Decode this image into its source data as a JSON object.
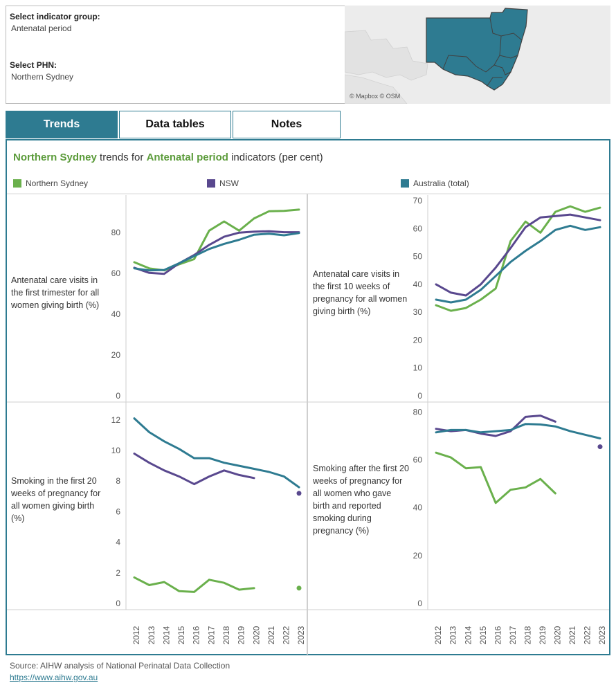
{
  "selectors": {
    "indicator_group_label": "Select indicator group:",
    "indicator_group_value": "Antenatal period",
    "phn_label": "Select PHN:",
    "phn_value": "Northern Sydney"
  },
  "map": {
    "credit": "© Mapbox © OSM"
  },
  "tabs": [
    {
      "label": "Trends",
      "active": true
    },
    {
      "label": "Data tables",
      "active": false
    },
    {
      "label": "Notes",
      "active": false
    }
  ],
  "panel": {
    "title_phn": "Northern Sydney",
    "title_mid": " trends for ",
    "title_group": "Antenatal period",
    "title_end": " indicators (per cent)"
  },
  "legend": [
    {
      "name": "Northern Sydney",
      "color": "#6ab04c"
    },
    {
      "name": "NSW",
      "color": "#59488e"
    },
    {
      "name": "Australia (total)",
      "color": "#2e7b91"
    }
  ],
  "footer": {
    "source": "Source: AIHW analysis of National Perinatal Data Collection",
    "link": "https://www.aihw.gov.au"
  },
  "chart_data": [
    {
      "type": "line",
      "ylabel": "Antenatal care visits in the first trimester for all women giving birth (%)",
      "x": [
        2012,
        2013,
        2014,
        2015,
        2016,
        2017,
        2018,
        2019,
        2020,
        2021,
        2022,
        2023
      ],
      "ylim": [
        0,
        95
      ],
      "yticks": [
        0,
        20,
        40,
        60,
        80
      ],
      "series": [
        {
          "name": "Northern Sydney",
          "values": [
            65.5,
            62.5,
            61.5,
            64.5,
            67,
            81,
            85.5,
            81,
            87,
            90.5,
            90.7,
            91.3
          ]
        },
        {
          "name": "NSW",
          "values": [
            62.8,
            60.3,
            59.8,
            65,
            69,
            74,
            78,
            80,
            80.5,
            80.7,
            80.2,
            80.2
          ]
        },
        {
          "name": "Australia (total)",
          "values": [
            62.5,
            61.5,
            61.7,
            65,
            68.5,
            72,
            74.5,
            76.5,
            79,
            79.5,
            78.7,
            79.8
          ]
        }
      ]
    },
    {
      "type": "line",
      "ylabel": "Antenatal care visits in the first 10 weeks of pregnancy for all women giving birth (%)",
      "x": [
        2012,
        2013,
        2014,
        2015,
        2016,
        2017,
        2018,
        2019,
        2020,
        2021,
        2022,
        2023
      ],
      "ylim": [
        0,
        70
      ],
      "yticks": [
        0,
        10,
        20,
        30,
        40,
        50,
        60,
        70
      ],
      "series": [
        {
          "name": "Northern Sydney",
          "values": [
            32.5,
            30.5,
            31.5,
            34.5,
            38.5,
            55.5,
            62.5,
            58.5,
            66,
            68,
            66,
            67.5
          ]
        },
        {
          "name": "NSW",
          "values": [
            40,
            37,
            36,
            40,
            46,
            53,
            60.5,
            64,
            64.5,
            65,
            64,
            63
          ]
        },
        {
          "name": "Australia (total)",
          "values": [
            34.5,
            33.5,
            34.5,
            38,
            43,
            48,
            52,
            55.5,
            59.5,
            61,
            59.5,
            60.5
          ]
        }
      ]
    },
    {
      "type": "line",
      "ylabel": "Smoking in the first 20 weeks of pregnancy for all women giving birth (%)",
      "x": [
        2012,
        2013,
        2014,
        2015,
        2016,
        2017,
        2018,
        2019,
        2020,
        2021,
        2022,
        2023
      ],
      "ylim": [
        0,
        12.4
      ],
      "yticks": [
        0,
        2,
        4,
        6,
        8,
        10,
        12
      ],
      "series": [
        {
          "name": "Northern Sydney",
          "values": [
            1.7,
            1.2,
            1.4,
            0.8,
            0.75,
            1.55,
            1.35,
            0.9,
            1.0,
            null,
            null,
            1.0
          ]
        },
        {
          "name": "NSW",
          "values": [
            9.8,
            9.2,
            8.7,
            8.3,
            7.8,
            8.3,
            8.7,
            8.4,
            8.2,
            null,
            null,
            7.2
          ]
        },
        {
          "name": "Australia (total)",
          "values": [
            12.1,
            11.2,
            10.6,
            10.1,
            9.5,
            9.5,
            9.2,
            9.0,
            8.8,
            8.6,
            8.3,
            7.6
          ]
        }
      ]
    },
    {
      "type": "line",
      "ylabel": "Smoking after the first 20 weeks of pregnancy for all women who gave birth and reported smoking during pregnancy (%)",
      "x": [
        2012,
        2013,
        2014,
        2015,
        2016,
        2017,
        2018,
        2019,
        2020,
        2021,
        2022,
        2023
      ],
      "ylim": [
        0,
        81
      ],
      "yticks": [
        0,
        20,
        40,
        60,
        80
      ],
      "series": [
        {
          "name": "Northern Sydney",
          "values": [
            63,
            61,
            56.5,
            57,
            42,
            47.5,
            48.5,
            52,
            46,
            null,
            null,
            null
          ]
        },
        {
          "name": "NSW",
          "values": [
            73,
            72,
            72.5,
            71,
            70,
            72,
            78,
            78.5,
            76,
            null,
            null,
            65.5
          ]
        },
        {
          "name": "Australia (total)",
          "values": [
            71.5,
            72.5,
            72.5,
            71.5,
            72,
            72.5,
            75,
            74.8,
            74,
            72,
            70.5,
            69
          ]
        }
      ]
    }
  ]
}
